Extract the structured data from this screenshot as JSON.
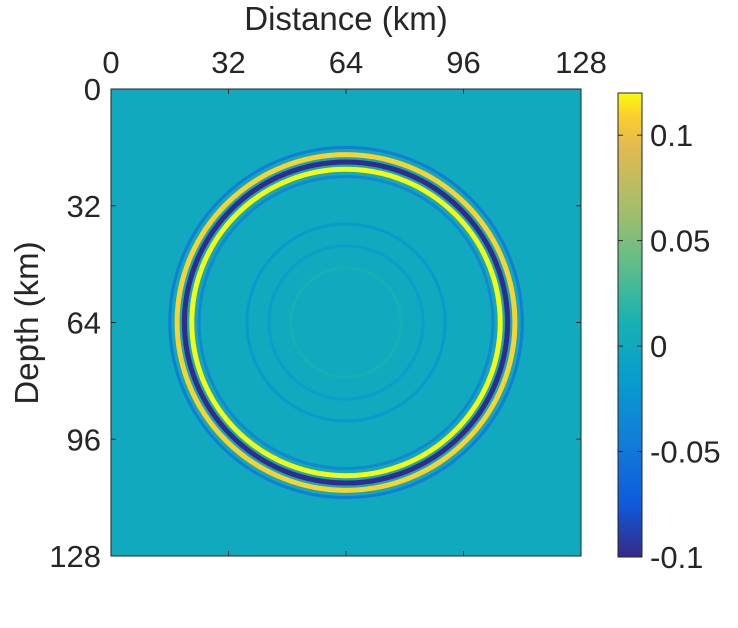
{
  "chart_data": {
    "type": "heatmap",
    "title": "",
    "xlabel": "Distance (km)",
    "ylabel": "Depth (km)",
    "xlim": [
      0,
      128
    ],
    "ylim": [
      0,
      128
    ],
    "x_axis_position": "top",
    "y_axis_direction": "reversed",
    "x_ticks": [
      0,
      32,
      64,
      96,
      128
    ],
    "y_ticks": [
      0,
      32,
      64,
      96,
      128
    ],
    "x_tick_labels": [
      "0",
      "32",
      "64",
      "96",
      "128"
    ],
    "y_tick_labels": [
      "0",
      "32",
      "64",
      "96",
      "128"
    ],
    "background_value": 0,
    "source_center": {
      "x": 64,
      "z": 64
    },
    "rings": [
      {
        "radius": 44,
        "amplitude": -0.1,
        "description": "primary wavefront trough"
      },
      {
        "radius": 42,
        "amplitude": 0.12,
        "description": "primary wavefront peak"
      },
      {
        "radius": 46,
        "amplitude": 0.11,
        "description": "primary wavefront peak"
      },
      {
        "radius": 40,
        "amplitude": -0.04,
        "description": "side lobe"
      },
      {
        "radius": 48,
        "amplitude": -0.05,
        "description": "side lobe"
      },
      {
        "radius": 27,
        "amplitude": -0.02,
        "description": "inner ripple"
      },
      {
        "radius": 21,
        "amplitude": -0.015,
        "description": "inner ripple"
      },
      {
        "radius": 15,
        "amplitude": 0.01,
        "description": "inner ripple"
      }
    ],
    "colorbar": {
      "range": [
        -0.1,
        0.12
      ],
      "ticks": [
        0.1,
        0.05,
        0,
        -0.05,
        -0.1
      ],
      "tick_labels": [
        "0.1",
        "0.05",
        "0",
        "-0.05",
        "-0.1"
      ],
      "colormap": "parula",
      "placement": "right"
    },
    "grid": false
  }
}
